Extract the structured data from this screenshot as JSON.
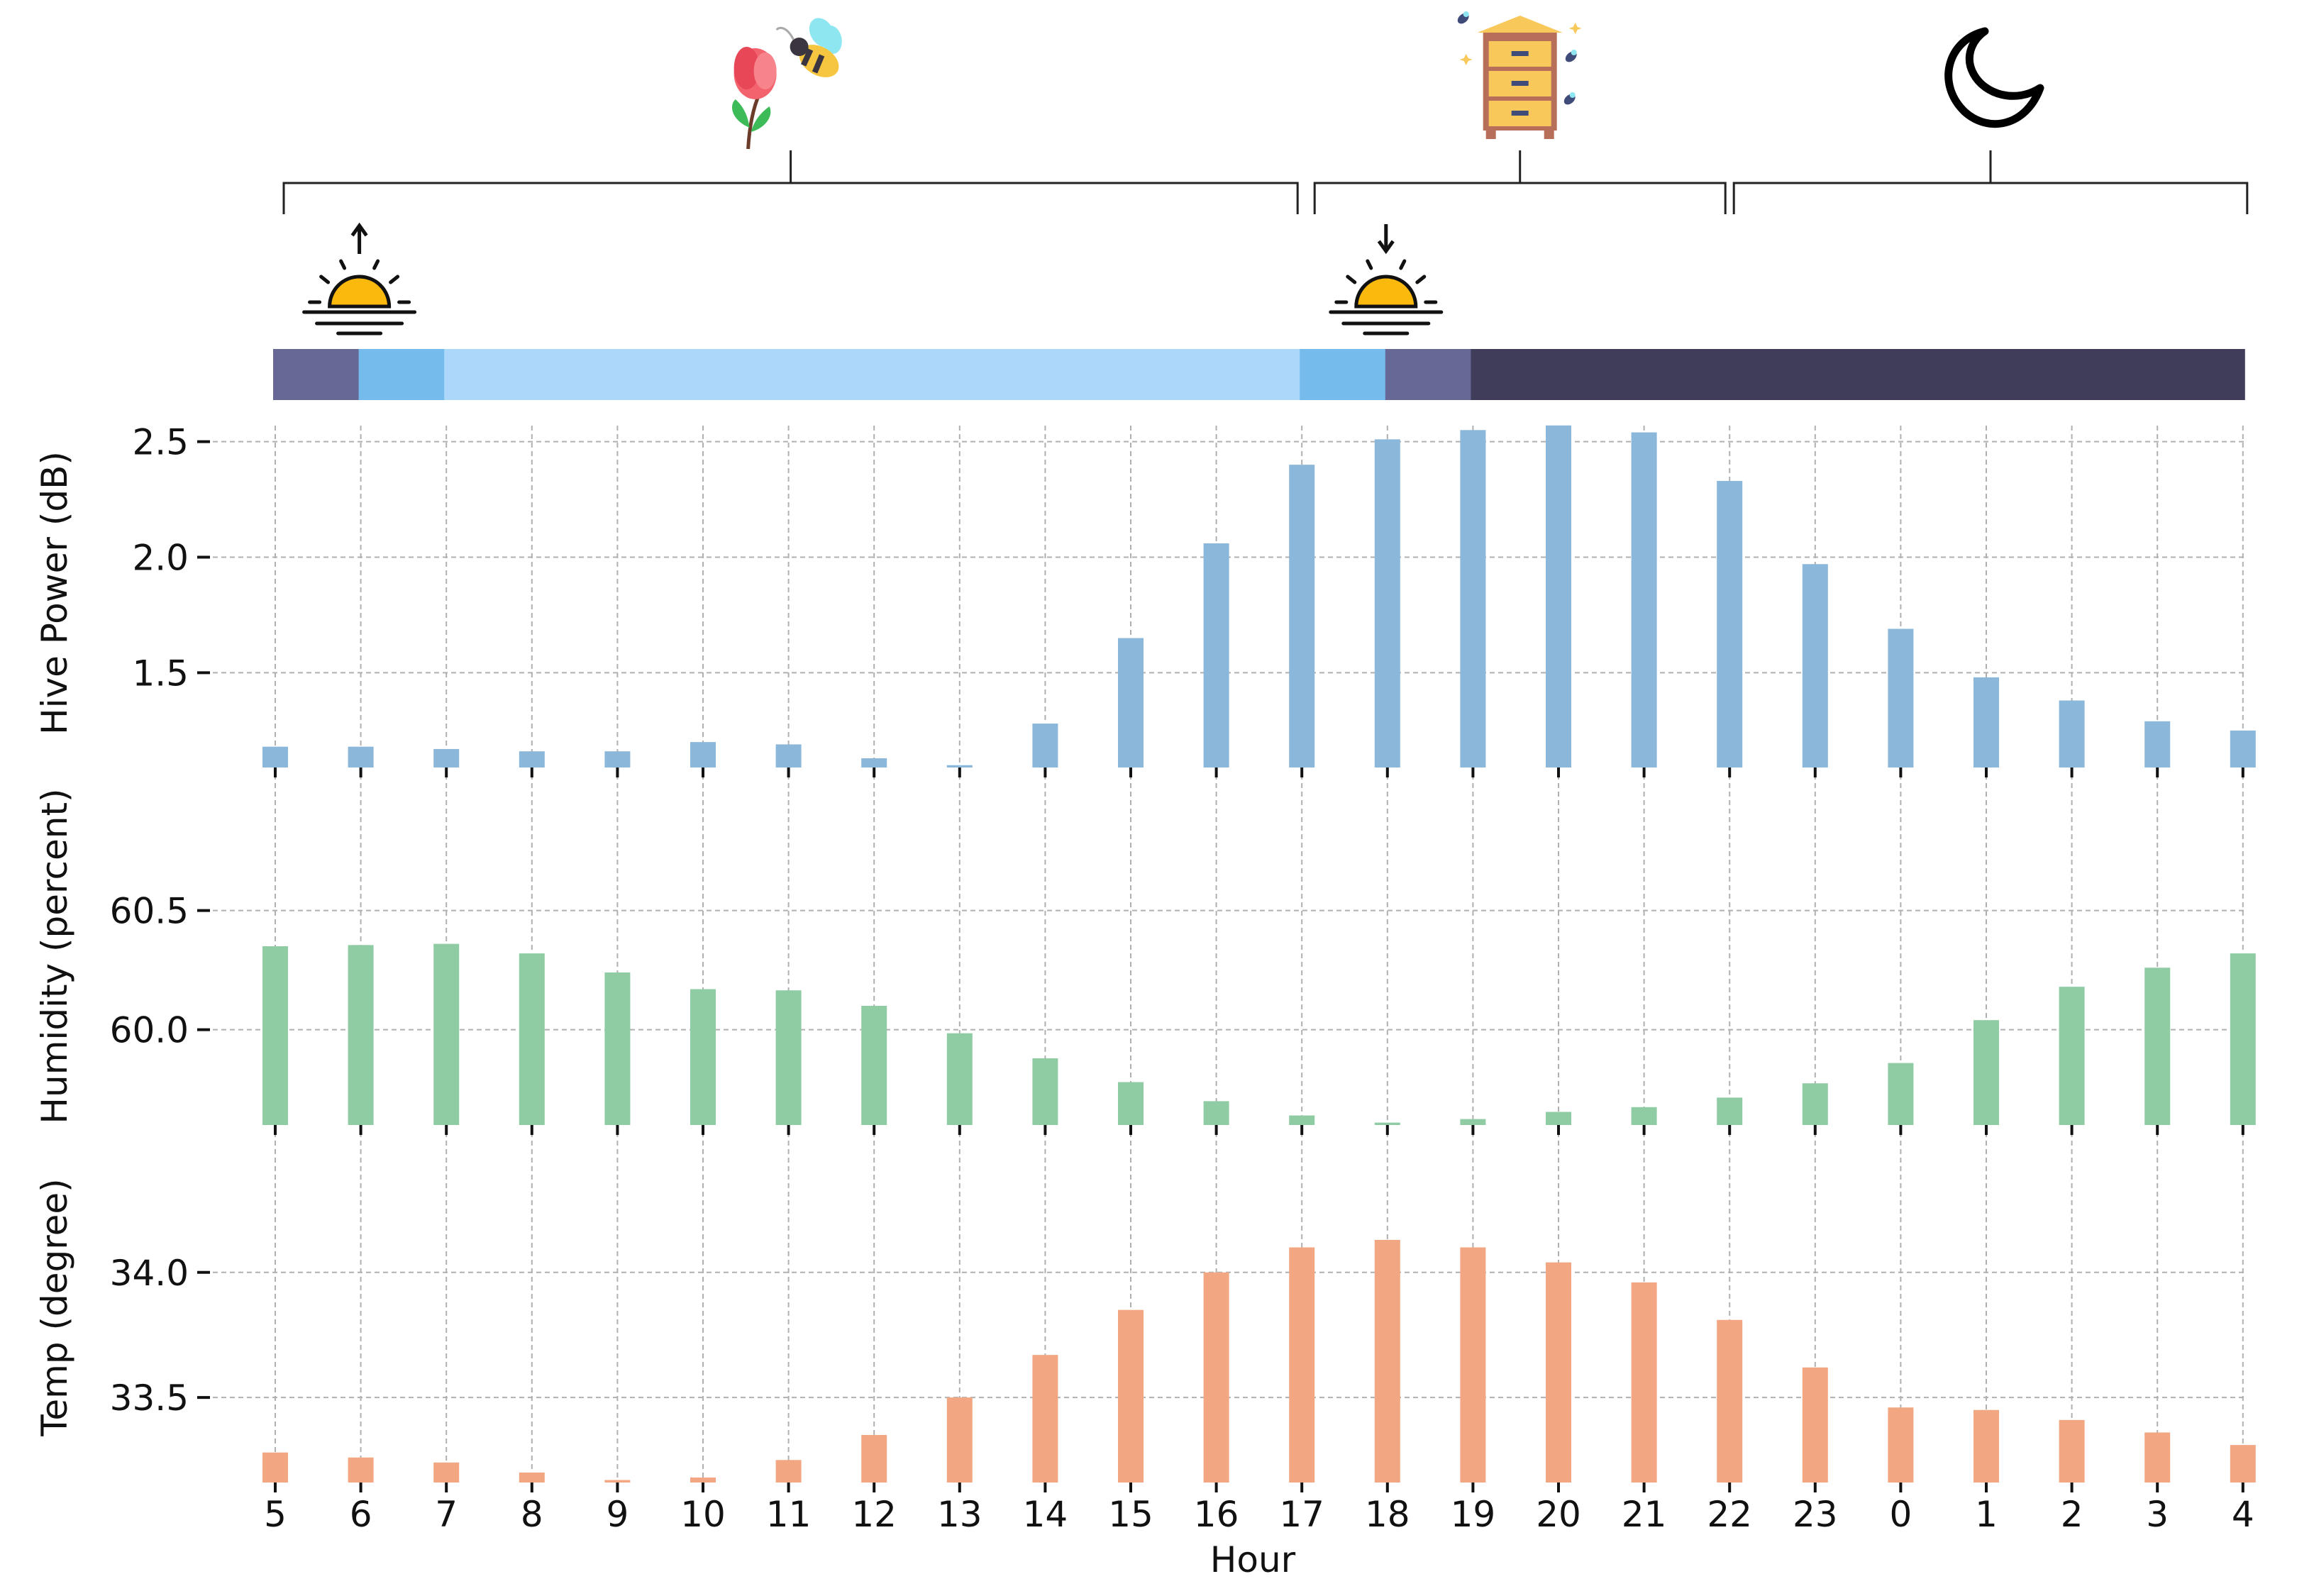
{
  "chart_data": {
    "type": "bar",
    "xlabel": "Hour",
    "categories": [
      "5",
      "6",
      "7",
      "8",
      "9",
      "10",
      "11",
      "12",
      "13",
      "14",
      "15",
      "16",
      "17",
      "18",
      "19",
      "20",
      "21",
      "22",
      "23",
      "0",
      "1",
      "2",
      "3",
      "4"
    ],
    "timeline": {
      "segments": [
        {
          "start": "5",
          "end": "6",
          "phase": "twilight",
          "color": "#676896"
        },
        {
          "start": "6",
          "end": "7",
          "phase": "sunrise-light",
          "color": "#75bcec"
        },
        {
          "start": "7",
          "end": "17",
          "phase": "daylight",
          "color": "#acd7fb"
        },
        {
          "start": "17",
          "end": "18",
          "phase": "sunset-light",
          "color": "#75bcec"
        },
        {
          "start": "18",
          "end": "19",
          "phase": "twilight",
          "color": "#676896"
        },
        {
          "start": "19",
          "end": "4",
          "phase": "night",
          "color": "#403d5b"
        }
      ]
    },
    "icons": [
      {
        "name": "sunrise-icon",
        "at": "6"
      },
      {
        "name": "sunset-icon",
        "at": "18"
      }
    ],
    "brackets": [
      {
        "start": "5",
        "end": "17",
        "icon": "flower-bee-icon"
      },
      {
        "start": "17",
        "end": "22",
        "icon": "beehive-icon"
      },
      {
        "start": "22",
        "end": "4",
        "icon": "moon-icon"
      }
    ],
    "panels": [
      {
        "ylabel": "Hive Power (dB)",
        "color": "#8ab7da",
        "ylim": [
          1.09,
          2.6
        ],
        "yticks": [
          1.5,
          2.0,
          2.5
        ],
        "baseline": 1.09,
        "values": [
          1.18,
          1.18,
          1.17,
          1.16,
          1.16,
          1.2,
          1.19,
          1.13,
          1.1,
          1.28,
          1.65,
          2.06,
          2.4,
          2.51,
          2.55,
          2.57,
          2.54,
          2.33,
          1.97,
          1.69,
          1.48,
          1.38,
          1.29,
          1.25
        ]
      },
      {
        "ylabel": "Humidity (percent)",
        "color": "#8fcca3",
        "ylim": [
          59.6,
          60.6
        ],
        "yticks": [
          60.0,
          60.5
        ],
        "baseline": 59.6,
        "values": [
          60.35,
          60.355,
          60.36,
          60.32,
          60.24,
          60.17,
          60.165,
          60.1,
          59.985,
          59.88,
          59.78,
          59.7,
          59.64,
          59.61,
          59.625,
          59.655,
          59.675,
          59.715,
          59.775,
          59.86,
          60.04,
          60.18,
          60.26,
          60.32
        ]
      },
      {
        "ylabel": "Temp (degree)",
        "color": "#f2a782",
        "ylim": [
          33.16,
          34.3
        ],
        "yticks": [
          33.5,
          34.0
        ],
        "baseline": 33.16,
        "values": [
          33.28,
          33.26,
          33.24,
          33.2,
          33.17,
          33.18,
          33.25,
          33.35,
          33.5,
          33.67,
          33.85,
          34.0,
          34.1,
          34.13,
          34.1,
          34.04,
          33.96,
          33.81,
          33.62,
          33.46,
          33.45,
          33.41,
          33.36,
          33.31
        ]
      }
    ]
  }
}
